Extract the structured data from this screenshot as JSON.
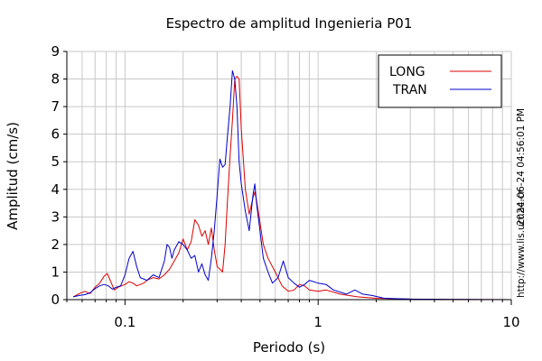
{
  "chart_data": {
    "type": "line",
    "title": "Espectro de amplitud Ingenieria P01",
    "xlabel": "Periodo (s)",
    "ylabel": "Amplitud (cm/s)",
    "x_scale": "log",
    "xlim": [
      0.05,
      10
    ],
    "ylim": [
      0,
      9
    ],
    "x_tick_labels": [
      {
        "value": 0.1,
        "label": "0.1"
      },
      {
        "value": 1,
        "label": "1"
      },
      {
        "value": 10,
        "label": "10"
      }
    ],
    "y_ticks": [
      0,
      1,
      2,
      3,
      4,
      5,
      6,
      7,
      8,
      9
    ],
    "grid": true,
    "legend_position": "top-right",
    "side_text": {
      "timestamp": "2024-06-24 04:56:01 PM",
      "url": "http://www.lis.ucr.ac.cr"
    },
    "series": [
      {
        "name": "LONG",
        "color": "#dd0000",
        "points": [
          [
            0.054,
            0.1
          ],
          [
            0.058,
            0.22
          ],
          [
            0.062,
            0.3
          ],
          [
            0.066,
            0.22
          ],
          [
            0.07,
            0.45
          ],
          [
            0.074,
            0.6
          ],
          [
            0.078,
            0.85
          ],
          [
            0.081,
            0.95
          ],
          [
            0.085,
            0.6
          ],
          [
            0.088,
            0.35
          ],
          [
            0.092,
            0.45
          ],
          [
            0.096,
            0.5
          ],
          [
            0.1,
            0.55
          ],
          [
            0.105,
            0.65
          ],
          [
            0.11,
            0.6
          ],
          [
            0.115,
            0.5
          ],
          [
            0.12,
            0.55
          ],
          [
            0.125,
            0.6
          ],
          [
            0.13,
            0.7
          ],
          [
            0.14,
            0.8
          ],
          [
            0.15,
            0.75
          ],
          [
            0.16,
            0.9
          ],
          [
            0.17,
            1.1
          ],
          [
            0.18,
            1.4
          ],
          [
            0.19,
            1.7
          ],
          [
            0.2,
            2.2
          ],
          [
            0.21,
            1.8
          ],
          [
            0.22,
            2.1
          ],
          [
            0.23,
            2.9
          ],
          [
            0.24,
            2.7
          ],
          [
            0.25,
            2.3
          ],
          [
            0.26,
            2.5
          ],
          [
            0.27,
            2.0
          ],
          [
            0.28,
            2.6
          ],
          [
            0.29,
            1.8
          ],
          [
            0.3,
            1.2
          ],
          [
            0.32,
            1.0
          ],
          [
            0.33,
            2.0
          ],
          [
            0.34,
            3.7
          ],
          [
            0.35,
            5.2
          ],
          [
            0.36,
            6.5
          ],
          [
            0.37,
            8.0
          ],
          [
            0.38,
            8.1
          ],
          [
            0.39,
            8.0
          ],
          [
            0.4,
            6.2
          ],
          [
            0.42,
            4.0
          ],
          [
            0.44,
            3.1
          ],
          [
            0.46,
            3.7
          ],
          [
            0.47,
            3.9
          ],
          [
            0.48,
            3.6
          ],
          [
            0.5,
            2.8
          ],
          [
            0.52,
            2.0
          ],
          [
            0.55,
            1.5
          ],
          [
            0.6,
            1.0
          ],
          [
            0.65,
            0.5
          ],
          [
            0.7,
            0.3
          ],
          [
            0.75,
            0.35
          ],
          [
            0.8,
            0.55
          ],
          [
            0.85,
            0.5
          ],
          [
            0.9,
            0.35
          ],
          [
            1.0,
            0.3
          ],
          [
            1.1,
            0.35
          ],
          [
            1.3,
            0.2
          ],
          [
            1.6,
            0.1
          ],
          [
            2.0,
            0.05
          ],
          [
            3.0,
            0.02
          ],
          [
            5.0,
            0.01
          ],
          [
            10.0,
            0.0
          ]
        ]
      },
      {
        "name": "TRAN",
        "color": "#0000cc",
        "points": [
          [
            0.054,
            0.1
          ],
          [
            0.058,
            0.15
          ],
          [
            0.062,
            0.18
          ],
          [
            0.066,
            0.25
          ],
          [
            0.07,
            0.4
          ],
          [
            0.074,
            0.5
          ],
          [
            0.078,
            0.55
          ],
          [
            0.082,
            0.5
          ],
          [
            0.086,
            0.38
          ],
          [
            0.09,
            0.45
          ],
          [
            0.095,
            0.5
          ],
          [
            0.1,
            0.9
          ],
          [
            0.105,
            1.5
          ],
          [
            0.11,
            1.75
          ],
          [
            0.115,
            1.2
          ],
          [
            0.12,
            0.8
          ],
          [
            0.13,
            0.7
          ],
          [
            0.14,
            0.9
          ],
          [
            0.15,
            0.8
          ],
          [
            0.16,
            1.4
          ],
          [
            0.165,
            2.0
          ],
          [
            0.17,
            1.9
          ],
          [
            0.175,
            1.5
          ],
          [
            0.18,
            1.8
          ],
          [
            0.19,
            2.1
          ],
          [
            0.2,
            2.0
          ],
          [
            0.21,
            1.8
          ],
          [
            0.22,
            1.5
          ],
          [
            0.23,
            1.6
          ],
          [
            0.24,
            1.0
          ],
          [
            0.25,
            1.3
          ],
          [
            0.26,
            0.9
          ],
          [
            0.27,
            0.7
          ],
          [
            0.28,
            1.5
          ],
          [
            0.29,
            2.5
          ],
          [
            0.3,
            3.8
          ],
          [
            0.31,
            5.1
          ],
          [
            0.32,
            4.8
          ],
          [
            0.33,
            4.9
          ],
          [
            0.34,
            6.0
          ],
          [
            0.35,
            7.0
          ],
          [
            0.36,
            8.3
          ],
          [
            0.37,
            8.0
          ],
          [
            0.38,
            7.0
          ],
          [
            0.39,
            5.0
          ],
          [
            0.4,
            4.2
          ],
          [
            0.42,
            3.2
          ],
          [
            0.44,
            2.5
          ],
          [
            0.46,
            3.8
          ],
          [
            0.47,
            4.2
          ],
          [
            0.48,
            3.5
          ],
          [
            0.5,
            2.5
          ],
          [
            0.52,
            1.5
          ],
          [
            0.55,
            1.0
          ],
          [
            0.58,
            0.6
          ],
          [
            0.62,
            0.8
          ],
          [
            0.66,
            1.4
          ],
          [
            0.7,
            0.8
          ],
          [
            0.75,
            0.6
          ],
          [
            0.8,
            0.45
          ],
          [
            0.85,
            0.55
          ],
          [
            0.9,
            0.7
          ],
          [
            1.0,
            0.6
          ],
          [
            1.1,
            0.55
          ],
          [
            1.2,
            0.35
          ],
          [
            1.4,
            0.2
          ],
          [
            1.55,
            0.35
          ],
          [
            1.7,
            0.2
          ],
          [
            1.9,
            0.15
          ],
          [
            2.2,
            0.05
          ],
          [
            3.0,
            0.02
          ],
          [
            5.0,
            0.01
          ],
          [
            10.0,
            0.0
          ]
        ]
      }
    ]
  }
}
